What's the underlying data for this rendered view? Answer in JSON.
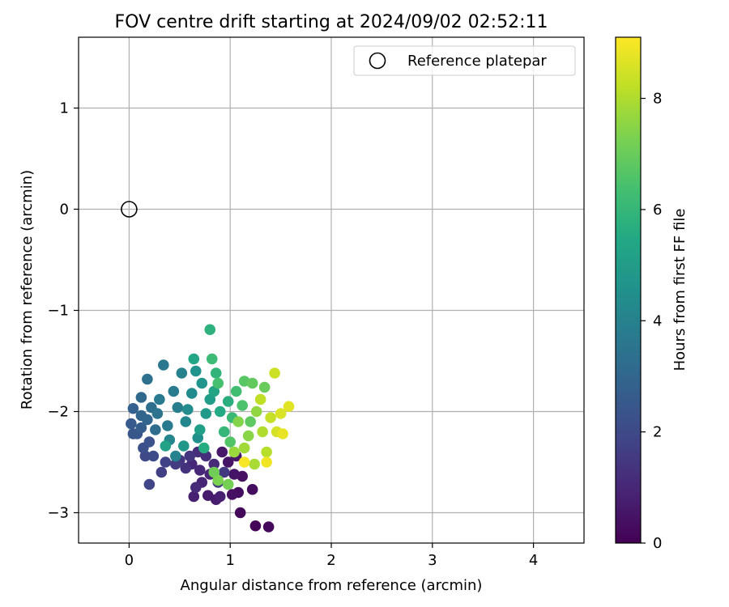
{
  "chart_data": {
    "type": "scatter",
    "title": "FOV centre drift starting at 2024/09/02 02:52:11",
    "xlabel": "Angular distance from reference (arcmin)",
    "ylabel": "Rotation from reference (arcmin)",
    "xlim": [
      -0.5,
      4.5
    ],
    "ylim": [
      -3.3,
      1.7
    ],
    "xticks": [
      0,
      1,
      2,
      3,
      4
    ],
    "yticks": [
      1,
      0,
      -1,
      -2,
      -3
    ],
    "xtick_labels": [
      "0",
      "1",
      "2",
      "3",
      "4"
    ],
    "ytick_labels": [
      "1",
      "0",
      "−1",
      "−2",
      "−3"
    ],
    "grid": true,
    "legend": {
      "placement": "top-right",
      "entries": [
        {
          "label": "Reference platepar",
          "marker": "hollow-circle",
          "color": "#000000"
        }
      ]
    },
    "reference_point": {
      "x": 0,
      "y": 0
    },
    "colorbar": {
      "label": "Hours from first FF file",
      "range": [
        0,
        9.1
      ],
      "ticks": [
        0,
        2,
        4,
        6,
        8
      ],
      "tick_labels": [
        "0",
        "2",
        "4",
        "6",
        "8"
      ],
      "colormap": "viridis"
    },
    "points": [
      {
        "x": 1.25,
        "y": -3.13,
        "t": 0.1
      },
      {
        "x": 1.38,
        "y": -3.14,
        "t": 0.2
      },
      {
        "x": 1.1,
        "y": -3.0,
        "t": 0.2
      },
      {
        "x": 1.22,
        "y": -2.77,
        "t": 0.3
      },
      {
        "x": 1.08,
        "y": -2.8,
        "t": 0.3
      },
      {
        "x": 1.02,
        "y": -2.82,
        "t": 0.4
      },
      {
        "x": 1.12,
        "y": -2.64,
        "t": 0.4
      },
      {
        "x": 1.04,
        "y": -2.62,
        "t": 0.5
      },
      {
        "x": 0.98,
        "y": -2.5,
        "t": 0.5
      },
      {
        "x": 0.92,
        "y": -2.4,
        "t": 0.6
      },
      {
        "x": 1.06,
        "y": -2.44,
        "t": 0.6
      },
      {
        "x": 0.86,
        "y": -2.87,
        "t": 0.7
      },
      {
        "x": 0.78,
        "y": -2.83,
        "t": 0.7
      },
      {
        "x": 0.64,
        "y": -2.84,
        "t": 0.8
      },
      {
        "x": 0.9,
        "y": -2.84,
        "t": 0.8
      },
      {
        "x": 0.72,
        "y": -2.7,
        "t": 0.9
      },
      {
        "x": 0.8,
        "y": -2.62,
        "t": 0.9
      },
      {
        "x": 0.7,
        "y": -2.58,
        "t": 1.0
      },
      {
        "x": 0.62,
        "y": -2.52,
        "t": 1.0
      },
      {
        "x": 0.84,
        "y": -2.52,
        "t": 1.1
      },
      {
        "x": 0.66,
        "y": -2.75,
        "t": 1.1
      },
      {
        "x": 0.76,
        "y": -2.44,
        "t": 1.2
      },
      {
        "x": 0.68,
        "y": -2.4,
        "t": 1.2
      },
      {
        "x": 0.56,
        "y": -2.56,
        "t": 1.3
      },
      {
        "x": 0.5,
        "y": -2.48,
        "t": 1.4
      },
      {
        "x": 0.6,
        "y": -2.44,
        "t": 1.4
      },
      {
        "x": 0.88,
        "y": -2.7,
        "t": 1.5
      },
      {
        "x": 0.94,
        "y": -2.6,
        "t": 1.5
      },
      {
        "x": 0.46,
        "y": -2.52,
        "t": 1.6
      },
      {
        "x": 0.32,
        "y": -2.6,
        "t": 1.7
      },
      {
        "x": 0.36,
        "y": -2.5,
        "t": 1.8
      },
      {
        "x": 0.2,
        "y": -2.72,
        "t": 1.9
      },
      {
        "x": 0.16,
        "y": -2.44,
        "t": 2.0
      },
      {
        "x": 0.24,
        "y": -2.44,
        "t": 2.1
      },
      {
        "x": 0.14,
        "y": -2.36,
        "t": 2.2
      },
      {
        "x": 0.2,
        "y": -2.3,
        "t": 2.3
      },
      {
        "x": 0.08,
        "y": -2.22,
        "t": 2.4
      },
      {
        "x": 0.04,
        "y": -2.22,
        "t": 2.5
      },
      {
        "x": 0.02,
        "y": -2.12,
        "t": 2.6
      },
      {
        "x": 0.12,
        "y": -2.16,
        "t": 2.7
      },
      {
        "x": 0.04,
        "y": -1.97,
        "t": 2.8
      },
      {
        "x": 0.12,
        "y": -2.04,
        "t": 2.9
      },
      {
        "x": 0.18,
        "y": -2.08,
        "t": 3.0
      },
      {
        "x": 0.12,
        "y": -1.86,
        "t": 3.1
      },
      {
        "x": 0.26,
        "y": -2.18,
        "t": 3.2
      },
      {
        "x": 0.22,
        "y": -1.96,
        "t": 3.3
      },
      {
        "x": 0.18,
        "y": -1.68,
        "t": 3.4
      },
      {
        "x": 0.28,
        "y": -2.02,
        "t": 3.5
      },
      {
        "x": 0.34,
        "y": -1.54,
        "t": 3.6
      },
      {
        "x": 0.3,
        "y": -1.88,
        "t": 3.7
      },
      {
        "x": 0.38,
        "y": -2.14,
        "t": 3.7
      },
      {
        "x": 0.44,
        "y": -1.8,
        "t": 3.8
      },
      {
        "x": 0.48,
        "y": -1.96,
        "t": 3.9
      },
      {
        "x": 0.52,
        "y": -1.62,
        "t": 4.0
      },
      {
        "x": 0.46,
        "y": -2.44,
        "t": 4.0
      },
      {
        "x": 0.4,
        "y": -2.28,
        "t": 4.1
      },
      {
        "x": 0.56,
        "y": -2.1,
        "t": 4.2
      },
      {
        "x": 0.62,
        "y": -1.82,
        "t": 4.3
      },
      {
        "x": 0.58,
        "y": -1.98,
        "t": 4.4
      },
      {
        "x": 0.68,
        "y": -2.26,
        "t": 4.5
      },
      {
        "x": 0.66,
        "y": -1.6,
        "t": 4.6
      },
      {
        "x": 0.72,
        "y": -1.72,
        "t": 4.7
      },
      {
        "x": 0.54,
        "y": -2.34,
        "t": 4.8
      },
      {
        "x": 0.76,
        "y": -2.02,
        "t": 4.9
      },
      {
        "x": 0.8,
        "y": -1.88,
        "t": 5.0
      },
      {
        "x": 0.7,
        "y": -2.18,
        "t": 5.1
      },
      {
        "x": 0.36,
        "y": -2.34,
        "t": 5.2
      },
      {
        "x": 0.84,
        "y": -1.8,
        "t": 5.3
      },
      {
        "x": 0.64,
        "y": -1.48,
        "t": 5.4
      },
      {
        "x": 0.9,
        "y": -2.0,
        "t": 5.5
      },
      {
        "x": 0.74,
        "y": -2.36,
        "t": 5.6
      },
      {
        "x": 0.98,
        "y": -1.9,
        "t": 5.7
      },
      {
        "x": 0.8,
        "y": -1.19,
        "t": 5.8
      },
      {
        "x": 0.86,
        "y": -1.62,
        "t": 5.9
      },
      {
        "x": 0.94,
        "y": -2.2,
        "t": 6.0
      },
      {
        "x": 1.02,
        "y": -2.06,
        "t": 6.1
      },
      {
        "x": 0.82,
        "y": -1.48,
        "t": 6.2
      },
      {
        "x": 1.06,
        "y": -1.8,
        "t": 6.3
      },
      {
        "x": 0.88,
        "y": -1.72,
        "t": 6.4
      },
      {
        "x": 1.12,
        "y": -1.94,
        "t": 6.5
      },
      {
        "x": 1.0,
        "y": -2.3,
        "t": 6.6
      },
      {
        "x": 1.14,
        "y": -1.7,
        "t": 6.7
      },
      {
        "x": 1.2,
        "y": -2.1,
        "t": 6.8
      },
      {
        "x": 1.22,
        "y": -1.72,
        "t": 6.9
      },
      {
        "x": 1.34,
        "y": -1.76,
        "t": 7.0
      },
      {
        "x": 0.84,
        "y": -2.6,
        "t": 7.1
      },
      {
        "x": 0.98,
        "y": -2.72,
        "t": 7.2
      },
      {
        "x": 0.88,
        "y": -2.68,
        "t": 7.3
      },
      {
        "x": 1.08,
        "y": -2.1,
        "t": 7.4
      },
      {
        "x": 1.18,
        "y": -2.24,
        "t": 7.5
      },
      {
        "x": 1.26,
        "y": -2.0,
        "t": 7.6
      },
      {
        "x": 1.04,
        "y": -2.4,
        "t": 7.7
      },
      {
        "x": 1.14,
        "y": -2.36,
        "t": 7.8
      },
      {
        "x": 1.24,
        "y": -2.52,
        "t": 7.9
      },
      {
        "x": 1.32,
        "y": -2.2,
        "t": 8.0
      },
      {
        "x": 1.36,
        "y": -2.4,
        "t": 8.1
      },
      {
        "x": 1.3,
        "y": -1.88,
        "t": 8.2
      },
      {
        "x": 1.4,
        "y": -2.06,
        "t": 8.3
      },
      {
        "x": 1.44,
        "y": -1.62,
        "t": 8.4
      },
      {
        "x": 1.46,
        "y": -2.2,
        "t": 8.5
      },
      {
        "x": 1.5,
        "y": -2.02,
        "t": 8.6
      },
      {
        "x": 1.58,
        "y": -1.95,
        "t": 8.7
      },
      {
        "x": 1.52,
        "y": -2.22,
        "t": 8.8
      },
      {
        "x": 1.36,
        "y": -2.5,
        "t": 8.9
      },
      {
        "x": 1.14,
        "y": -2.5,
        "t": 9.0
      }
    ]
  }
}
